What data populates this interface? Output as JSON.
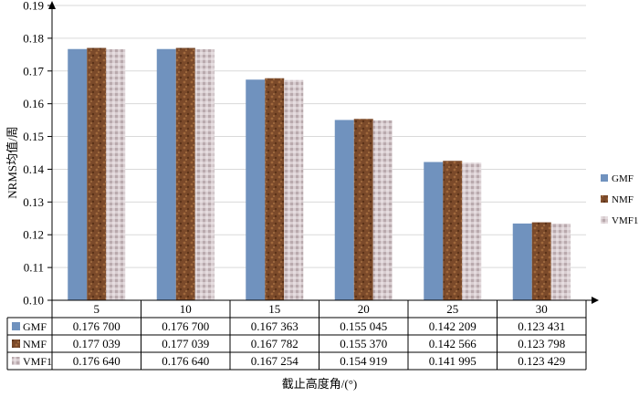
{
  "chart_data": {
    "type": "bar",
    "title": "",
    "xlabel": "截止高度角/(°)",
    "ylabel": "NRMS均值/周",
    "ylim": [
      0.1,
      0.19
    ],
    "ytick_step": 0.01,
    "ytick_labels": [
      "0.10",
      "0.11",
      "0.12",
      "0.13",
      "0.14",
      "0.15",
      "0.16",
      "0.17",
      "0.18",
      "0.19"
    ],
    "grid": true,
    "legend_position": "right",
    "categories": [
      "5",
      "10",
      "15",
      "20",
      "25",
      "30"
    ],
    "series": [
      {
        "name": "GMF",
        "color": "#7092be",
        "values": [
          0.1767,
          0.1767,
          0.167363,
          0.155045,
          0.142209,
          0.123431
        ],
        "labels": [
          "0.176 700",
          "0.176 700",
          "0.167 363",
          "0.155 045",
          "0.142 209",
          "0.123 431"
        ]
      },
      {
        "name": "NMF",
        "color": "#7b4a2a",
        "values": [
          0.177039,
          0.177039,
          0.167782,
          0.15537,
          0.142566,
          0.123798
        ],
        "labels": [
          "0.177 039",
          "0.177 039",
          "0.167 782",
          "0.155 370",
          "0.142 566",
          "0.123 798"
        ]
      },
      {
        "name": "VMF1",
        "color": "#cfc3c6",
        "values": [
          0.17664,
          0.17664,
          0.167254,
          0.154919,
          0.141995,
          0.123429
        ],
        "labels": [
          "0.176 640",
          "0.176 640",
          "0.167 254",
          "0.154 919",
          "0.141 995",
          "0.123 429"
        ]
      }
    ]
  }
}
